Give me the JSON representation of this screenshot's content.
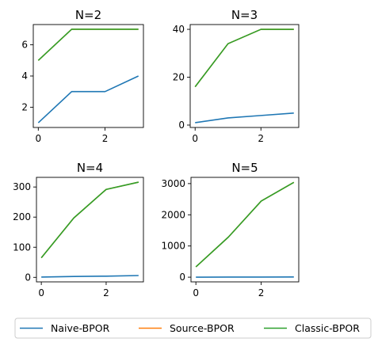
{
  "chart_data": [
    {
      "type": "line",
      "title": "N=2",
      "xlabel": "",
      "ylabel": "",
      "x": [
        0,
        1,
        2,
        3
      ],
      "xlim": [
        -0.15,
        3.15
      ],
      "ylim": [
        0.7,
        7.3
      ],
      "xticks": [
        0,
        2
      ],
      "yticks": [
        2,
        4,
        6
      ],
      "series": [
        {
          "name": "Naive-BPOR",
          "color": "#1f77b4",
          "values": [
            1,
            3,
            3,
            4
          ]
        },
        {
          "name": "Source-BPOR",
          "color": "#ff7f0e",
          "values": [
            5,
            7,
            7,
            7
          ]
        },
        {
          "name": "Classic-BPOR",
          "color": "#2ca02c",
          "values": [
            5,
            7,
            7,
            7
          ]
        }
      ]
    },
    {
      "type": "line",
      "title": "N=3",
      "xlabel": "",
      "ylabel": "",
      "x": [
        0,
        1,
        2,
        3
      ],
      "xlim": [
        -0.15,
        3.15
      ],
      "ylim": [
        -1,
        42
      ],
      "xticks": [
        0,
        2
      ],
      "yticks": [
        0,
        20,
        40
      ],
      "series": [
        {
          "name": "Naive-BPOR",
          "color": "#1f77b4",
          "values": [
            1,
            3,
            4,
            5
          ]
        },
        {
          "name": "Source-BPOR",
          "color": "#ff7f0e",
          "values": [
            16,
            34,
            40,
            40
          ]
        },
        {
          "name": "Classic-BPOR",
          "color": "#2ca02c",
          "values": [
            16,
            34,
            40,
            40
          ]
        }
      ]
    },
    {
      "type": "line",
      "title": "N=4",
      "xlabel": "",
      "ylabel": "",
      "x": [
        0,
        1,
        2,
        3
      ],
      "xlim": [
        -0.15,
        3.15
      ],
      "ylim": [
        -15,
        332
      ],
      "xticks": [
        0,
        2
      ],
      "yticks": [
        0,
        100,
        200,
        300
      ],
      "series": [
        {
          "name": "Naive-BPOR",
          "color": "#1f77b4",
          "values": [
            1,
            3,
            4,
            6
          ]
        },
        {
          "name": "Source-BPOR",
          "color": "#ff7f0e",
          "values": [
            65,
            197,
            292,
            316
          ]
        },
        {
          "name": "Classic-BPOR",
          "color": "#2ca02c",
          "values": [
            65,
            197,
            292,
            316
          ]
        }
      ]
    },
    {
      "type": "line",
      "title": "N=5",
      "xlabel": "",
      "ylabel": "",
      "x": [
        0,
        1,
        2,
        3
      ],
      "xlim": [
        -0.15,
        3.15
      ],
      "ylim": [
        -150,
        3200
      ],
      "xticks": [
        0,
        2
      ],
      "yticks": [
        0,
        1000,
        2000,
        3000
      ],
      "series": [
        {
          "name": "Naive-BPOR",
          "color": "#1f77b4",
          "values": [
            1,
            3,
            4,
            6
          ]
        },
        {
          "name": "Source-BPOR",
          "color": "#ff7f0e",
          "values": [
            330,
            1290,
            2440,
            3040
          ]
        },
        {
          "name": "Classic-BPOR",
          "color": "#2ca02c",
          "values": [
            330,
            1290,
            2440,
            3040
          ]
        }
      ]
    }
  ],
  "legend": {
    "placement": "bottom-center",
    "items": [
      {
        "label": "Naive-BPOR",
        "color": "#1f77b4"
      },
      {
        "label": "Source-BPOR",
        "color": "#ff7f0e"
      },
      {
        "label": "Classic-BPOR",
        "color": "#2ca02c"
      }
    ]
  }
}
